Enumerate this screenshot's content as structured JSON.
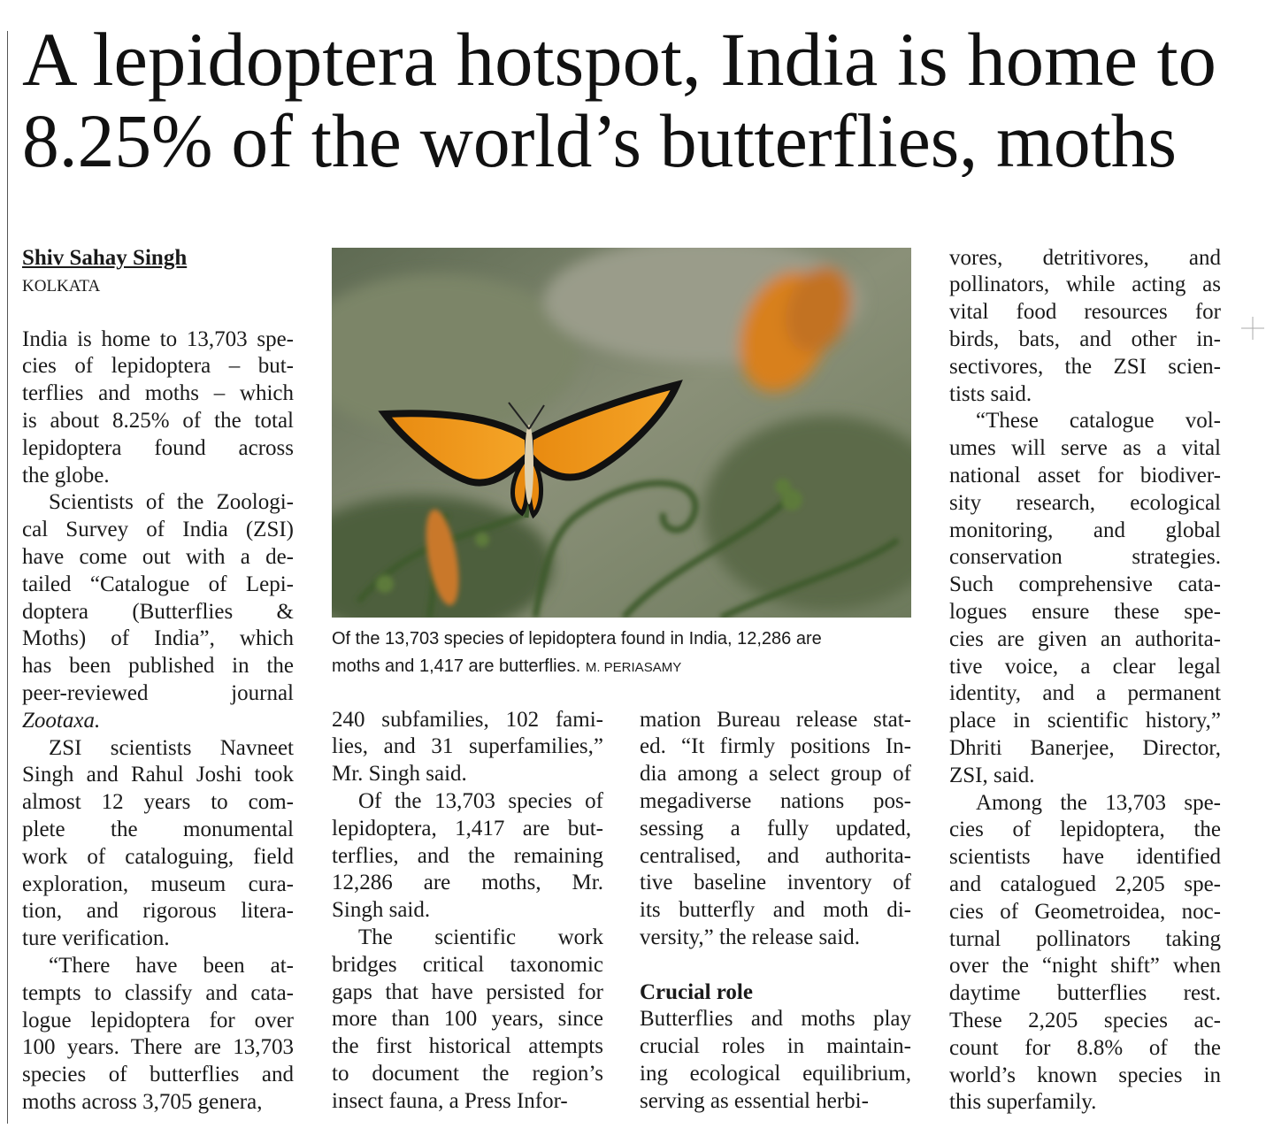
{
  "headline": {
    "lines": [
      "A lepidoptera hotspot, India is home to",
      "8.25% of the world’s butterflies, moths"
    ]
  },
  "byline": "Shiv Sahay Singh",
  "dateline": "KOLKATA",
  "caption": {
    "lines": [
      "Of the 13,703 species of lepidoptera found in India, 12,286 are",
      "moths and 1,417 are butterflies."
    ],
    "credit": "M. PERIASAMY"
  },
  "columns": [
    {
      "paragraphs": [
        [
          "India is home to 13,703 spe-",
          "cies of lepidoptera – but-",
          "terflies and moths – which",
          "is about 8.25% of the total",
          "lepidoptera found across",
          "the globe."
        ],
        [
          "Scientists of the Zoologi-",
          "cal Survey of India (ZSI)",
          "have come out with a de-",
          "tailed “Catalogue of Lepi-",
          "doptera (Butterflies &",
          "Moths) of India”, which",
          "has been published in the",
          "peer-reviewed journal",
          "Zootaxa."
        ],
        [
          "ZSI scientists Navneet",
          "Singh and Rahul Joshi took",
          "almost 12 years to com-",
          "plete the monumental",
          "work of cataloguing, field",
          "exploration, museum cura-",
          "tion, and rigorous litera-",
          "ture verification."
        ],
        [
          "“There have been at-",
          "tempts to classify and cata-",
          "logue lepidoptera for over",
          "100 years. There are 13,703",
          "species of butterflies and",
          "moths across 3,705 genera,"
        ]
      ]
    },
    {
      "paragraphs": [
        [
          "240 subfamilies, 102 fami-",
          "lies, and 31 superfamilies,”",
          "Mr. Singh said."
        ],
        [
          "Of the 13,703 species of",
          "lepidoptera, 1,417 are but-",
          "terflies, and the remaining",
          "12,286 are moths, Mr.",
          "Singh said."
        ],
        [
          "The scientific work",
          "bridges critical taxonomic",
          "gaps that have persisted for",
          "more than 100 years, since",
          "the first historical attempts",
          "to document the region’s",
          "insect fauna, a Press Infor-"
        ]
      ]
    },
    {
      "paragraphs": [
        [
          "mation Bureau release stat-",
          "ed. “It firmly positions In-",
          "dia among a select group of",
          "megadiverse nations pos-",
          "sessing a fully updated,",
          "centralised, and authorita-",
          "tive baseline inventory of",
          "its butterfly and moth di-",
          "versity,” the release said."
        ]
      ],
      "subhead": "Crucial role",
      "after_subhead": [
        [
          "Butterflies and moths play",
          "crucial roles in maintain-",
          "ing ecological equilibrium,",
          "serving as essential herbi-"
        ]
      ]
    },
    {
      "paragraphs": [
        [
          "vores, detritivores, and",
          "pollinators, while acting as",
          "vital food resources for",
          "birds, bats, and other in-",
          "sectivores, the ZSI scien-",
          "tists said."
        ],
        [
          "“These catalogue vol-",
          "umes will serve as a vital",
          "national asset for biodiver-",
          "sity research, ecological",
          "monitoring, and global",
          "conservation strategies.",
          "Such comprehensive cata-",
          "logues ensure these spe-",
          "cies are given an authorita-",
          "tive voice, a clear legal",
          "identity, and a permanent",
          "place in scientific history,”",
          "Dhriti Banerjee, Director,",
          "ZSI, said."
        ],
        [
          "Among the 13,703 spe-",
          "cies of lepidoptera, the",
          "scientists have identified",
          "and catalogued 2,205 spe-",
          "cies of Geometroidea, noc-",
          "turnal pollinators taking",
          "over the “night shift” when",
          "daytime butterflies rest.",
          "These 2,205 species ac-",
          "count for 8.8% of the",
          "world’s known species in",
          "this superfamily."
        ]
      ]
    }
  ]
}
